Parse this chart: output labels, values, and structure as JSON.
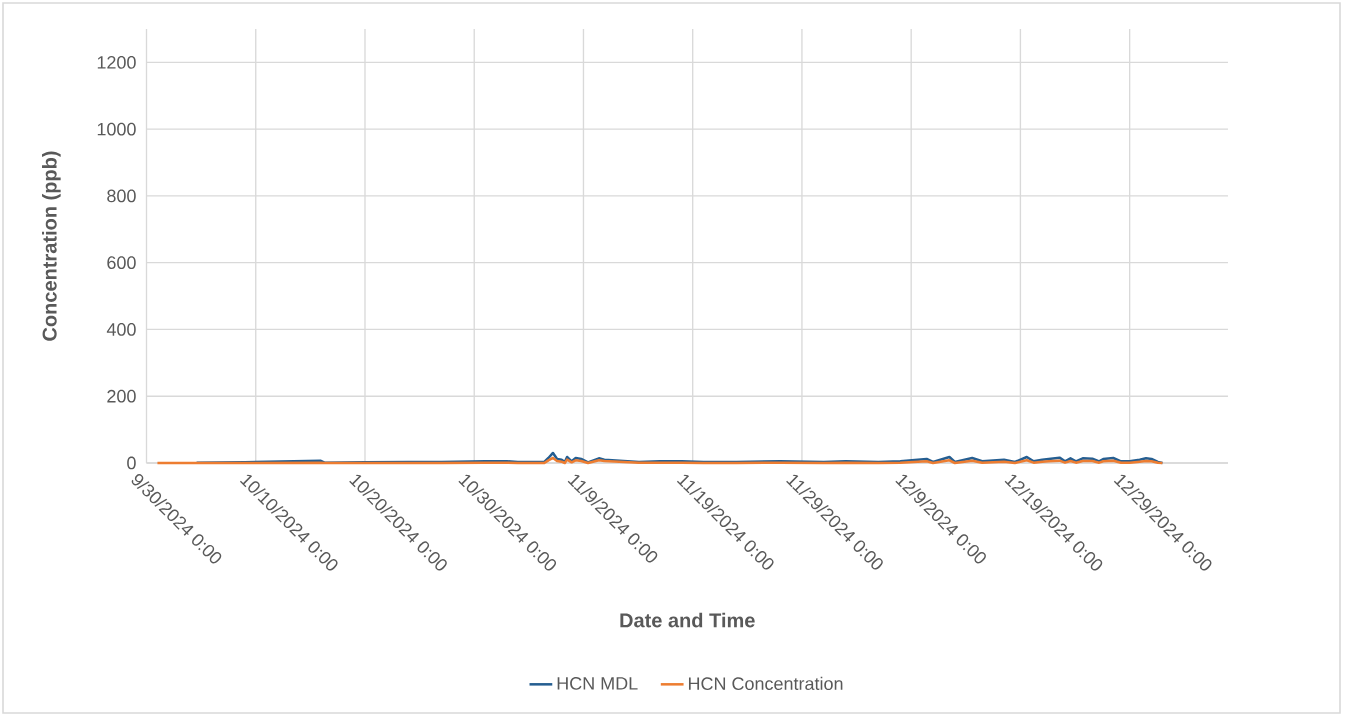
{
  "chart_data": {
    "type": "line",
    "xlabel": "Date and Time",
    "ylabel": "Concentration (ppb)",
    "x": [
      "2024-10-01T00:00",
      "2024-10-04T07:00",
      "2024-10-04T14:00",
      "2024-10-09T00:00",
      "2024-10-15T22:00",
      "2024-10-16T07:00",
      "2024-10-20T00:00",
      "2024-10-24T00:00",
      "2024-10-27T00:00",
      "2024-10-31T00:00",
      "2024-11-02T00:00",
      "2024-11-03T00:00",
      "2024-11-04T12:00",
      "2024-11-05T10:00",
      "2024-11-05T19:00",
      "2024-11-06T05:00",
      "2024-11-06T14:00",
      "2024-11-07T00:00",
      "2024-11-07T07:00",
      "2024-11-07T12:00",
      "2024-11-07T22:00",
      "2024-11-08T07:00",
      "2024-11-08T19:00",
      "2024-11-09T10:00",
      "2024-11-10T10:00",
      "2024-11-10T22:00",
      "2024-11-14T02:00",
      "2024-11-16T00:00",
      "2024-11-18T00:00",
      "2024-11-20T00:00",
      "2024-11-23T00:00",
      "2024-11-27T00:00",
      "2024-12-01T00:00",
      "2024-12-03T00:00",
      "2024-12-06T00:00",
      "2024-12-08T00:00",
      "2024-12-10T10:00",
      "2024-12-11T00:00",
      "2024-12-12T12:00",
      "2024-12-13T00:00",
      "2024-12-14T14:00",
      "2024-12-15T12:00",
      "2024-12-17T12:00",
      "2024-12-18T12:00",
      "2024-12-19T14:00",
      "2024-12-20T05:00",
      "2024-12-21T00:00",
      "2024-12-21T14:00",
      "2024-12-22T14:00",
      "2024-12-23T02:00",
      "2024-12-23T14:00",
      "2024-12-24T02:00",
      "2024-12-24T17:00",
      "2024-12-25T14:00",
      "2024-12-26T05:00",
      "2024-12-26T14:00",
      "2024-12-27T12:00",
      "2024-12-28T05:00",
      "2024-12-29T00:00",
      "2024-12-29T22:00",
      "2024-12-30T12:00",
      "2024-12-31T00:00",
      "2024-12-31T14:00",
      "2025-01-01T00:00"
    ],
    "series": [
      {
        "name": "HCN MDL",
        "color": "#255e91",
        "values": [
          null,
          null,
          1,
          2,
          7,
          1,
          2,
          3,
          3,
          5,
          5,
          3,
          3,
          3,
          15,
          30,
          12,
          10,
          3,
          18,
          5,
          15,
          12,
          2,
          14,
          10,
          3,
          5,
          5,
          3,
          3,
          5,
          3,
          5,
          3,
          5,
          12,
          3,
          18,
          3,
          15,
          5,
          10,
          3,
          18,
          5,
          10,
          12,
          16,
          5,
          14,
          5,
          14,
          13,
          5,
          12,
          15,
          5,
          5,
          10,
          14,
          12,
          3,
          0
        ]
      },
      {
        "name": "HCN Concentration",
        "color": "#ed7d31",
        "values": [
          0,
          0,
          0,
          0,
          1,
          0,
          0,
          0,
          0,
          1,
          1,
          0,
          0,
          0,
          8,
          15,
          6,
          4,
          0,
          10,
          2,
          8,
          6,
          0,
          8,
          6,
          1,
          1,
          1,
          0,
          0,
          1,
          0,
          1,
          0,
          1,
          5,
          0,
          8,
          0,
          7,
          1,
          4,
          0,
          8,
          1,
          4,
          5,
          7,
          1,
          6,
          1,
          6,
          6,
          1,
          5,
          7,
          1,
          1,
          4,
          6,
          5,
          1,
          0
        ]
      }
    ],
    "xlim": [
      "2024-09-30",
      "2025-01-07"
    ],
    "xticks": [
      {
        "value": "2024-09-30",
        "label": "9/30/2024 0:00"
      },
      {
        "value": "2024-10-10",
        "label": "10/10/2024 0:00"
      },
      {
        "value": "2024-10-20",
        "label": "10/20/2024 0:00"
      },
      {
        "value": "2024-10-30",
        "label": "10/30/2024 0:00"
      },
      {
        "value": "2024-11-09",
        "label": "11/9/2024 0:00"
      },
      {
        "value": "2024-11-19",
        "label": "11/19/2024 0:00"
      },
      {
        "value": "2024-11-29",
        "label": "11/29/2024 0:00"
      },
      {
        "value": "2024-12-09",
        "label": "12/9/2024 0:00"
      },
      {
        "value": "2024-12-19",
        "label": "12/19/2024 0:00"
      },
      {
        "value": "2024-12-29",
        "label": "12/29/2024 0:00"
      }
    ],
    "ylim": [
      0,
      1300
    ],
    "yticks": [
      0,
      200,
      400,
      600,
      800,
      1000,
      1200
    ],
    "grid": true,
    "legend": "bottom",
    "marker": "none",
    "line_style": "solid"
  }
}
